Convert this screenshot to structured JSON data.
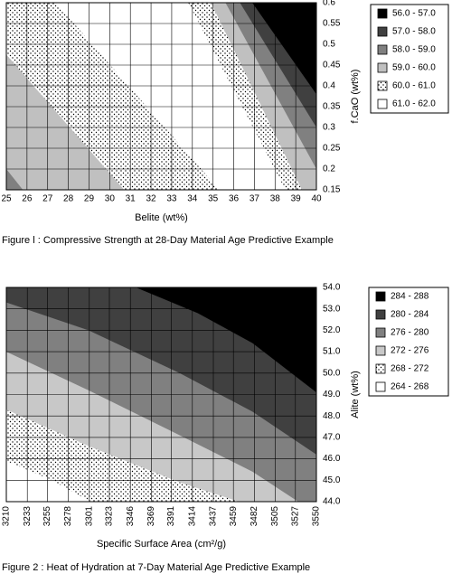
{
  "chart_data": [
    {
      "type": "contour",
      "title": "Figure l : Compressive Strength at 28-Day Material Age Predictive Example",
      "x_label": "Belite (wt%)",
      "y_label": "f.CaO (wt%)",
      "xlim": [
        25,
        40
      ],
      "ylim": [
        0.15,
        0.6
      ],
      "xticks": [
        25,
        26,
        27,
        28,
        29,
        30,
        31,
        32,
        33,
        34,
        35,
        36,
        37,
        38,
        39,
        40
      ],
      "yticks": [
        0.15,
        0.2,
        0.25,
        0.3,
        0.35,
        0.4,
        0.45,
        0.5,
        0.55,
        0.6
      ],
      "grid": true,
      "series": [
        {
          "name": "56.0 - 57.0",
          "color": "#000000"
        },
        {
          "name": "57.0 - 58.0",
          "color": "#404040"
        },
        {
          "name": "58.0 - 59.0",
          "color": "#808080"
        },
        {
          "name": "59.0 - 60.0",
          "color": "#c0c0c0"
        },
        {
          "name": "60.0 - 61.0",
          "color": "#ffffff",
          "pattern": "dots"
        },
        {
          "name": "61.0 - 62.0",
          "color": "#ffffff"
        }
      ],
      "base_level": 2,
      "boundaries": [
        {
          "level": 3,
          "x": [
            25,
            25.8
          ],
          "y": [
            0.2,
            0.15
          ]
        },
        {
          "level": 4,
          "x": [
            25,
            30.7
          ],
          "y": [
            0.475,
            0.15
          ]
        },
        {
          "level": 5,
          "x": [
            27.4,
            35.3
          ],
          "y": [
            0.6,
            0.15
          ]
        },
        {
          "level": 4,
          "x": [
            33.8,
            38.5
          ],
          "y": [
            0.6,
            0.15
          ]
        },
        {
          "level": 3,
          "x": [
            34.9,
            39.3
          ],
          "y": [
            0.6,
            0.15
          ]
        },
        {
          "level": 2,
          "x": [
            35.6,
            40
          ],
          "y": [
            0.6,
            0.2
          ]
        },
        {
          "level": 1,
          "x": [
            36.3,
            40
          ],
          "y": [
            0.6,
            0.3
          ]
        },
        {
          "level": 0,
          "x": [
            36.9,
            40
          ],
          "y": [
            0.6,
            0.38
          ]
        }
      ]
    },
    {
      "type": "contour",
      "title": "Figure 2 : Heat of Hydration at 7-Day Material Age Predictive Example",
      "x_label": "Specific Surface Area (cm²/g)",
      "y_label": "Alite (wt%)",
      "xlim": [
        3210,
        3550
      ],
      "ylim": [
        44,
        54
      ],
      "xticks": [
        3210,
        3233,
        3255,
        3278,
        3301,
        3323,
        3346,
        3369,
        3391,
        3414,
        3437,
        3459,
        3482,
        3505,
        3527,
        3550
      ],
      "yticks": [
        {
          "value": 44,
          "label": "44.0"
        },
        {
          "value": 45,
          "label": "45.0"
        },
        {
          "value": 46,
          "label": "46.0"
        },
        {
          "value": 47,
          "label": "47.0"
        },
        {
          "value": 48,
          "label": "48.0"
        },
        {
          "value": 49,
          "label": "49.0"
        },
        {
          "value": 50,
          "label": "50.0"
        },
        {
          "value": 51,
          "label": "51.0"
        },
        {
          "value": 52,
          "label": "52.0"
        },
        {
          "value": 53,
          "label": "53.0"
        },
        {
          "value": 54,
          "label": "54.0"
        }
      ],
      "grid": true,
      "series": [
        {
          "name": "284 - 288",
          "color": "#000000"
        },
        {
          "name": "280 - 284",
          "color": "#404040"
        },
        {
          "name": "276 - 280",
          "color": "#808080"
        },
        {
          "name": "272 - 276",
          "color": "#c8c8c8"
        },
        {
          "name": "268 - 272",
          "color": "#ffffff",
          "pattern": "dots"
        },
        {
          "name": "264 - 268",
          "color": "#ffffff"
        }
      ],
      "base_level": 5,
      "boundaries": [
        {
          "level": 4,
          "x": [
            3210,
            3260,
            3302
          ],
          "y": [
            45.9,
            45.0,
            44
          ]
        },
        {
          "level": 3,
          "x": [
            3210,
            3300,
            3400,
            3465
          ],
          "y": [
            48.3,
            46.6,
            44.9,
            44
          ]
        },
        {
          "level": 2,
          "x": [
            3210,
            3300,
            3400,
            3480,
            3530
          ],
          "y": [
            51.0,
            49.2,
            47.1,
            45.4,
            44
          ]
        },
        {
          "level": 1,
          "x": [
            3210,
            3300,
            3400,
            3480,
            3550
          ],
          "y": [
            53.3,
            52.0,
            50.0,
            48.2,
            46.2
          ]
        },
        {
          "level": 0,
          "x": [
            3352,
            3420,
            3480,
            3550
          ],
          "y": [
            54,
            52.8,
            51.4,
            49.1
          ]
        }
      ]
    }
  ]
}
